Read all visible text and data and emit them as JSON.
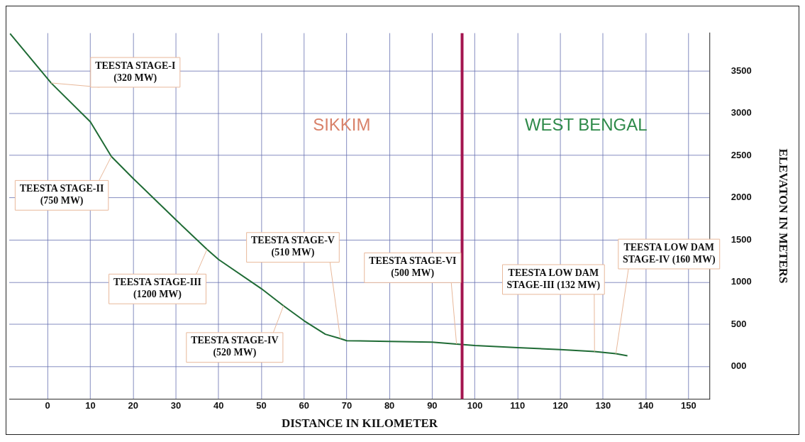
{
  "chart_data": {
    "type": "line",
    "xlabel": "DISTANCE IN KILOMETER",
    "ylabel": "ELEVATON IN METERS",
    "x": [
      -8.8,
      0.8,
      10,
      14.9,
      20,
      30,
      37.3,
      40,
      50,
      55.2,
      60,
      65,
      68.5,
      70,
      80,
      90,
      95.7,
      100,
      110,
      120,
      128,
      133,
      135.7
    ],
    "series": [
      {
        "color": "#1f6b35",
        "values": [
          3945,
          3360,
          2900,
          2490,
          2230,
          1740,
          1390,
          1270,
          925,
          722,
          545,
          385,
          333,
          308,
          300,
          292,
          268,
          251,
          227,
          203,
          179,
          154,
          130
        ]
      }
    ],
    "xlim": [
      -9,
      155
    ],
    "xticks": [
      0,
      10,
      20,
      30,
      40,
      50,
      60,
      70,
      80,
      90,
      100,
      110,
      120,
      130,
      140,
      150
    ],
    "ylim": [
      -380,
      3950
    ],
    "yticks": [
      {
        "value": 0,
        "label": "000"
      },
      500,
      1000,
      1500,
      2000,
      2500,
      3000,
      3500
    ],
    "grid": true,
    "marker": "none",
    "line_style": "solid",
    "legend": false,
    "ref_lines": [
      {
        "axis": "x",
        "value": 97,
        "color": "#a3154f"
      }
    ],
    "annotations": [
      "SIKKIM",
      "WEST BENGAL",
      {
        "text": "TEESTA STAGE-I\n(320 MW)",
        "x": 0.8,
        "y": 3360
      },
      {
        "text": "TEESTA STAGE-II\n(750 MW)",
        "x": 14.9,
        "y": 2490
      },
      {
        "text": "TEESTA STAGE-III\n(1200 MW)",
        "x": 37.3,
        "y": 1390
      },
      {
        "text": "TEESTA STAGE-IV\n(520 MW)",
        "x": 55.2,
        "y": 722
      },
      {
        "text": "TEESTA STAGE-V\n(510 MW)",
        "x": 68.5,
        "y": 333
      },
      {
        "text": "TEESTA STAGE-VI\n(500 MW)",
        "x": 95.7,
        "y": 268
      },
      {
        "text": "TEESTA LOW DAM\nSTAGE-III (132 MW)",
        "x": 128,
        "y": 179
      },
      {
        "text": "TEESTA LOW DAM\nSTAGE-IV (160 MW)",
        "x": 133,
        "y": 154
      }
    ]
  }
}
